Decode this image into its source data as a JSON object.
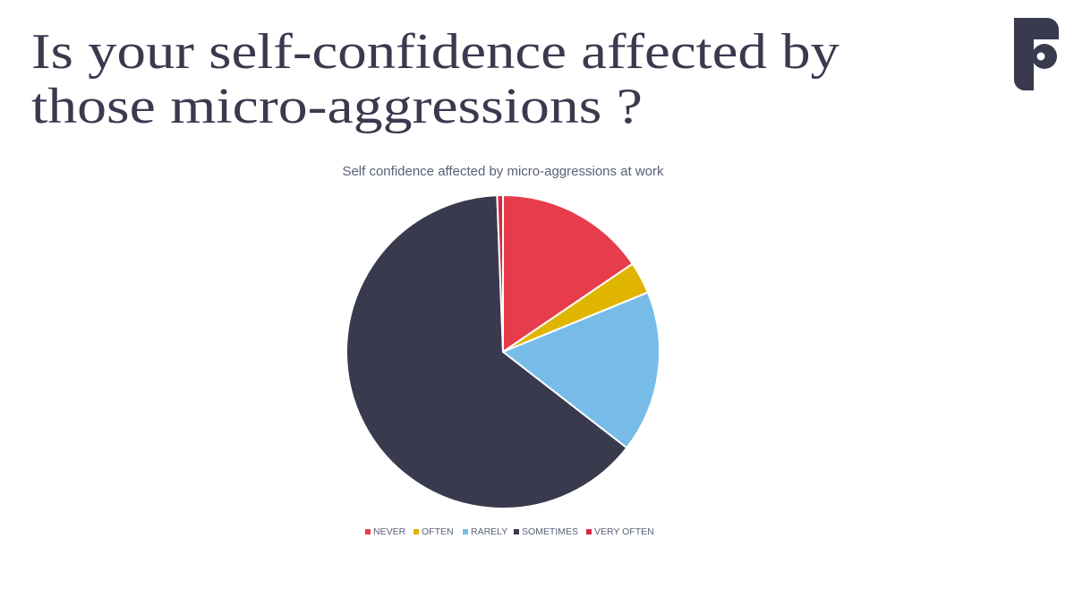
{
  "slide_title_lines": [
    "Is your self-confidence affected by",
    "those micro-aggressions ?"
  ],
  "chart_data": {
    "type": "pie",
    "title": "Self confidence affected by micro-aggressions at work",
    "categories": [
      "NEVER",
      "OFTEN",
      "RARELY",
      "SOMETIMES",
      "VERY OFTEN"
    ],
    "values": [
      15.5,
      3.3,
      16.7,
      63.9,
      0.6
    ],
    "colors": [
      "#e63c4b",
      "#e0b500",
      "#77bce8",
      "#393a4e",
      "#d6293f"
    ],
    "legend": "bottom"
  }
}
